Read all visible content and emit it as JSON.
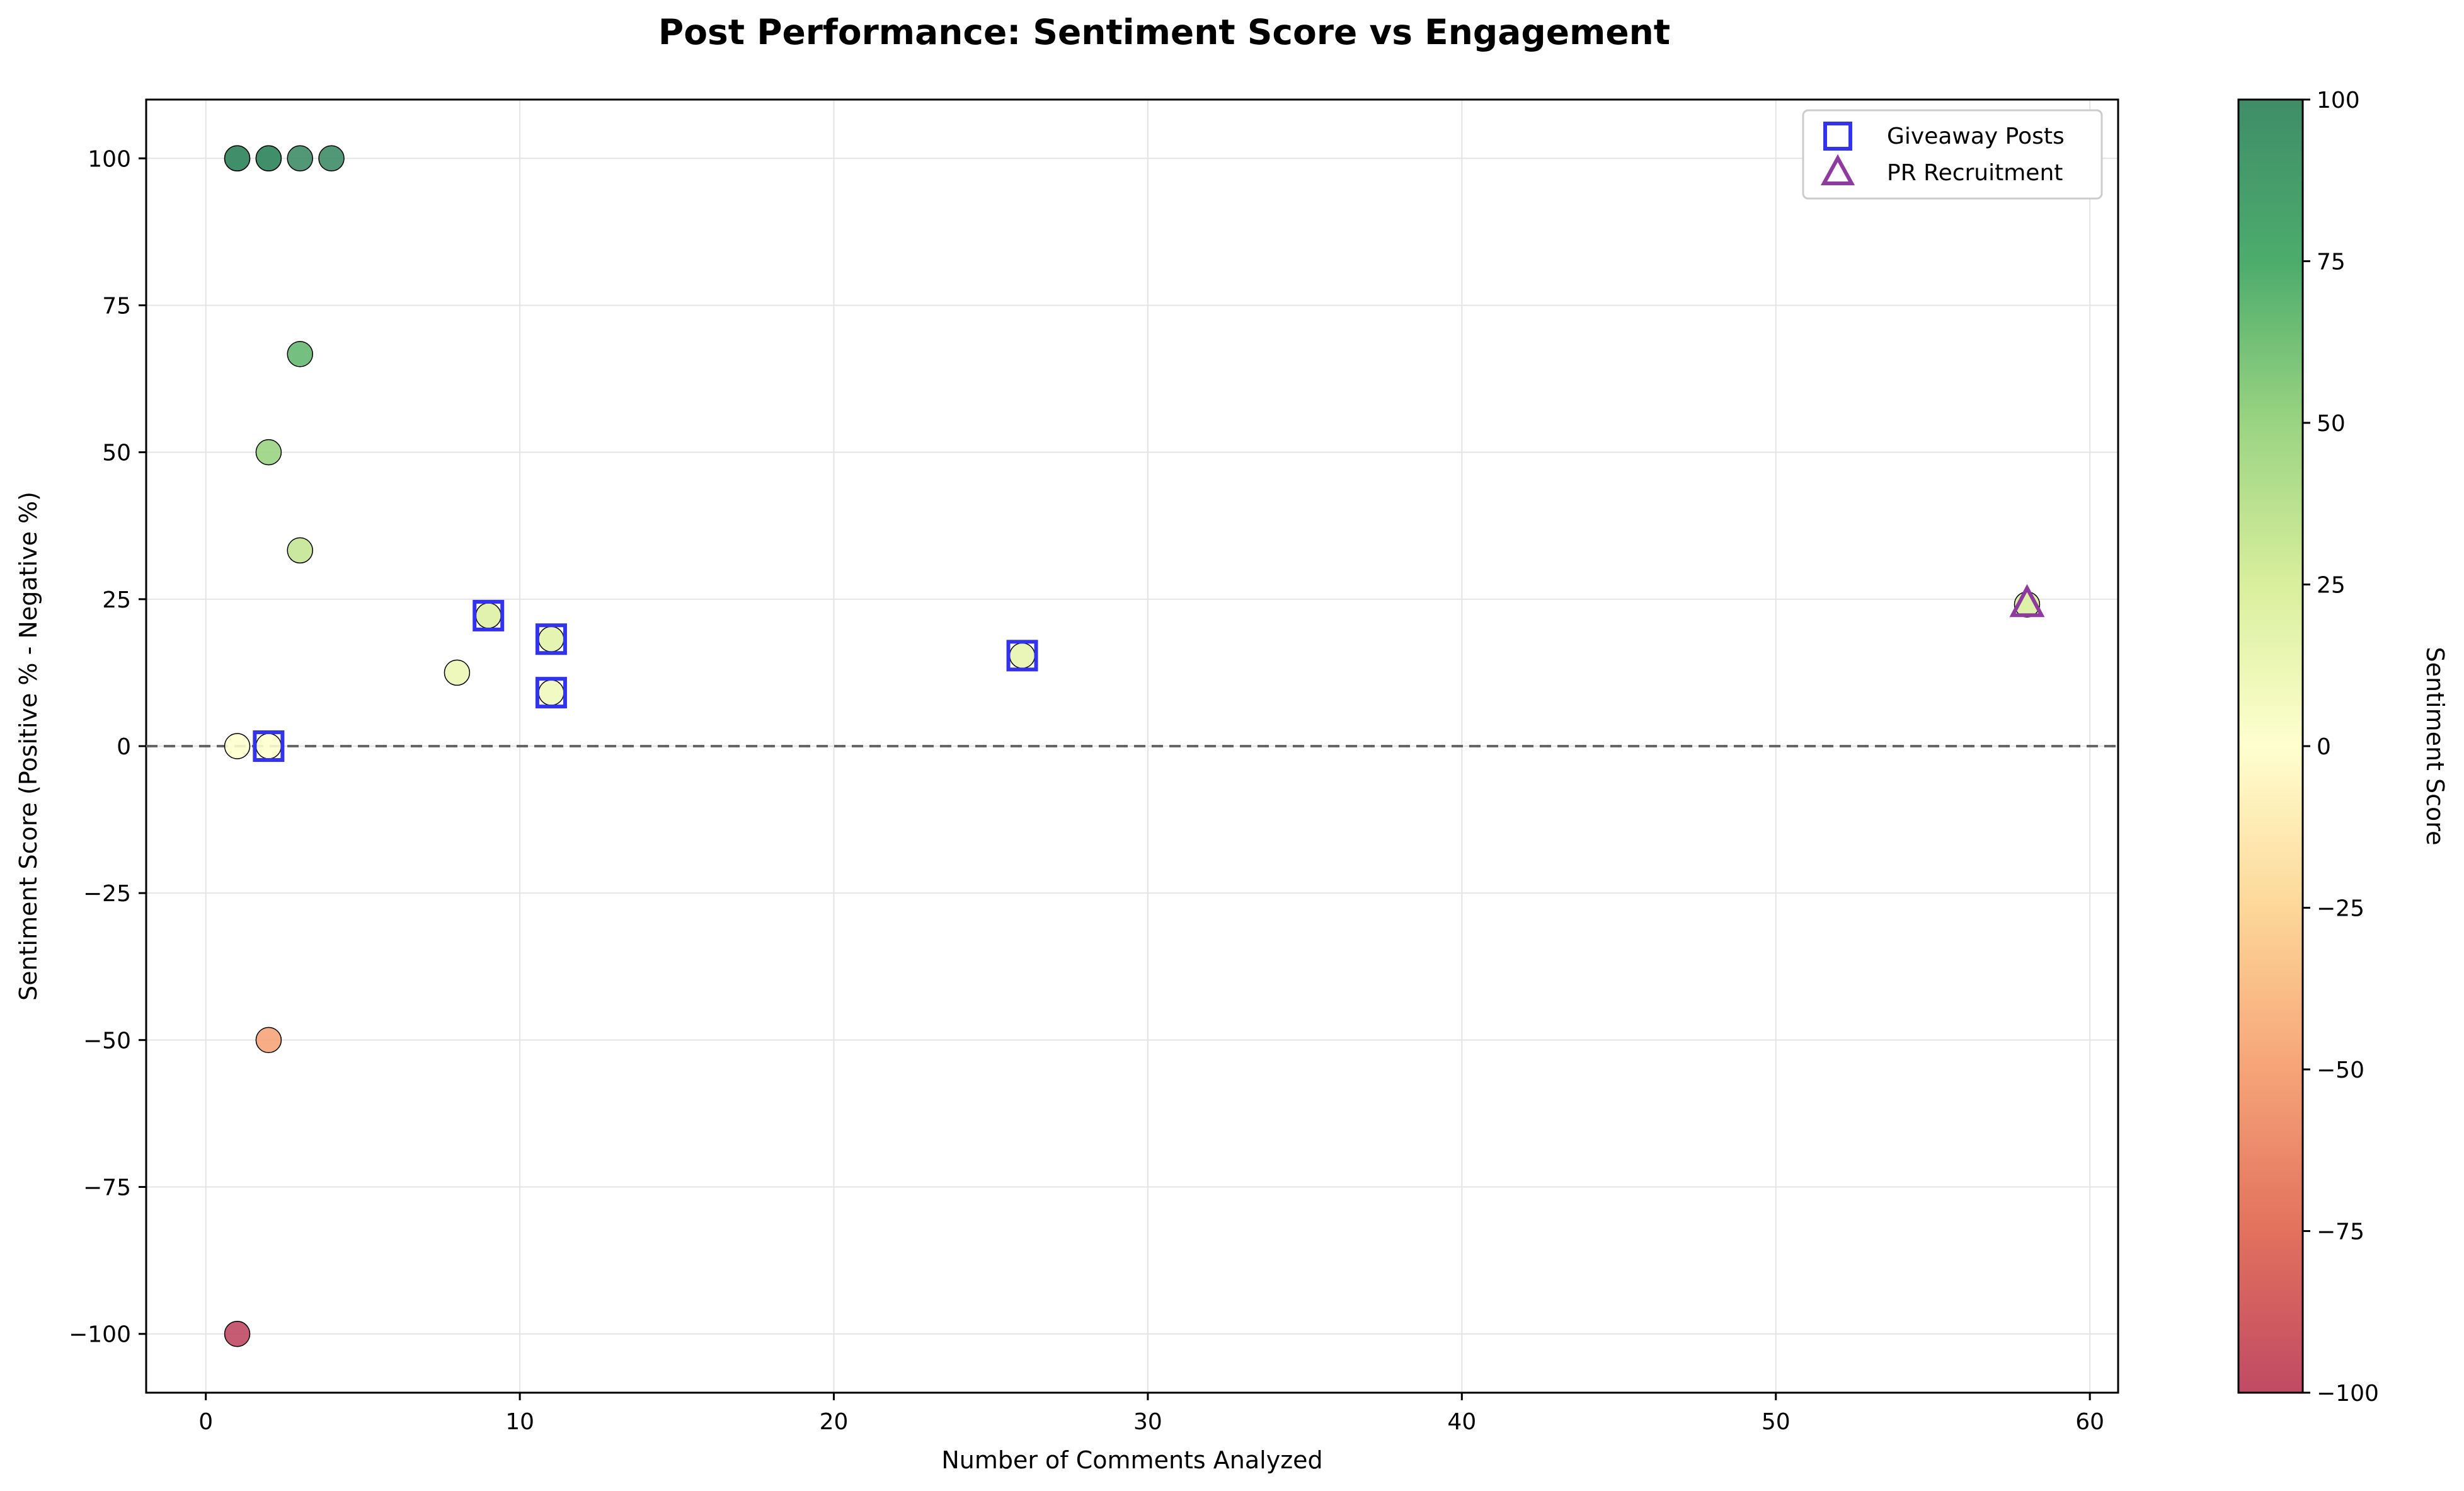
{
  "chart_data": {
    "type": "scatter",
    "title": "Post Performance: Sentiment Score vs Engagement",
    "xlabel": "Number of Comments Analyzed",
    "ylabel": "Sentiment Score (Positive % - Negative %)",
    "xlim": [
      -1.9,
      60.9
    ],
    "ylim": [
      -110,
      110
    ],
    "xticks": [
      0,
      10,
      20,
      30,
      40,
      50,
      60
    ],
    "yticks": [
      -100,
      -75,
      -50,
      -25,
      0,
      25,
      50,
      75,
      100
    ],
    "grid": true,
    "reference_line": {
      "y": 0,
      "style": "dashed",
      "color": "#666666"
    },
    "colorbar": {
      "label": "Sentiment Score",
      "range": [
        -100,
        100
      ],
      "ticks": [
        -100,
        -75,
        -50,
        -25,
        0,
        25,
        50,
        75,
        100
      ],
      "colormap": "RdYlGn"
    },
    "points": [
      {
        "x": 1,
        "y": 100
      },
      {
        "x": 1,
        "y": 100
      },
      {
        "x": 2,
        "y": 100
      },
      {
        "x": 2,
        "y": 100
      },
      {
        "x": 3,
        "y": 100
      },
      {
        "x": 4,
        "y": 100
      },
      {
        "x": 3,
        "y": 66.7
      },
      {
        "x": 2,
        "y": 50
      },
      {
        "x": 3,
        "y": 33.3
      },
      {
        "x": 9,
        "y": 22.2
      },
      {
        "x": 11,
        "y": 18.2
      },
      {
        "x": 8,
        "y": 12.5
      },
      {
        "x": 11,
        "y": 9.1
      },
      {
        "x": 26,
        "y": 15.4
      },
      {
        "x": 58,
        "y": 24.1
      },
      {
        "x": 1,
        "y": 0
      },
      {
        "x": 2,
        "y": 0
      },
      {
        "x": 2,
        "y": -50
      },
      {
        "x": 1,
        "y": -100
      }
    ],
    "highlight_series": [
      {
        "name": "Giveaway Posts",
        "marker": "square",
        "color": "#3333ee",
        "points": [
          {
            "x": 9,
            "y": 22.2
          },
          {
            "x": 11,
            "y": 18.2
          },
          {
            "x": 11,
            "y": 9.1
          },
          {
            "x": 26,
            "y": 15.4
          },
          {
            "x": 2,
            "y": 0
          }
        ]
      },
      {
        "name": "PR Recruitment",
        "marker": "triangle",
        "color": "#8e3a9e",
        "points": [
          {
            "x": 58,
            "y": 24.1
          }
        ]
      }
    ],
    "legend": {
      "position": "top-right"
    }
  }
}
